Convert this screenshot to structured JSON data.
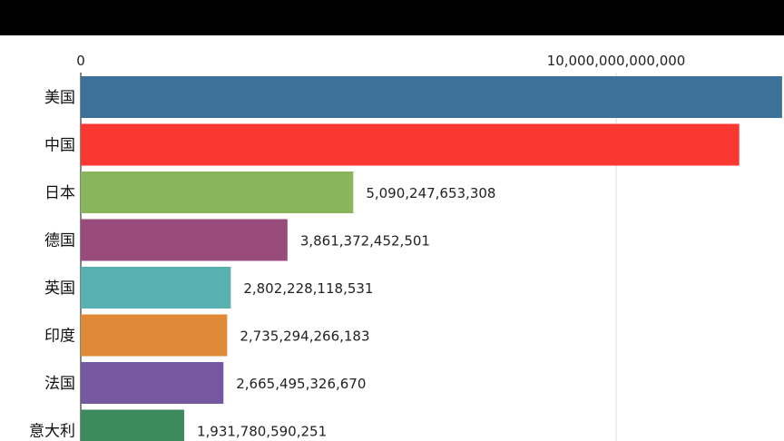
{
  "chart_data": {
    "type": "bar",
    "orientation": "horizontal",
    "title": "",
    "xlabel": "",
    "ylabel": "",
    "x_ticks": [
      {
        "value": 0,
        "label": "0"
      },
      {
        "value": 10000000000000,
        "label": "10,000,000,000,000"
      }
    ],
    "xlim": [
      0,
      13000000000000
    ],
    "grid": true,
    "categories": [
      "美国",
      "中国",
      "日本",
      "德国",
      "英国",
      "印度",
      "法国",
      "意大利"
    ],
    "values": [
      13100000000000,
      12300000000000,
      5090247653308,
      3861372452501,
      2802228118531,
      2735294266183,
      2665495326670,
      1931780590251
    ],
    "value_labels": [
      "",
      "",
      "5,090,247,653,308",
      "3,861,372,452,501",
      "2,802,228,118,531",
      "2,735,294,266,183",
      "2,665,495,326,670",
      "1,931,780,590,251"
    ],
    "colors": [
      "#3d7199",
      "#fb3732",
      "#89b65b",
      "#994c7c",
      "#59b0b1",
      "#e08a37",
      "#7558a0",
      "#3d8a5c"
    ]
  }
}
